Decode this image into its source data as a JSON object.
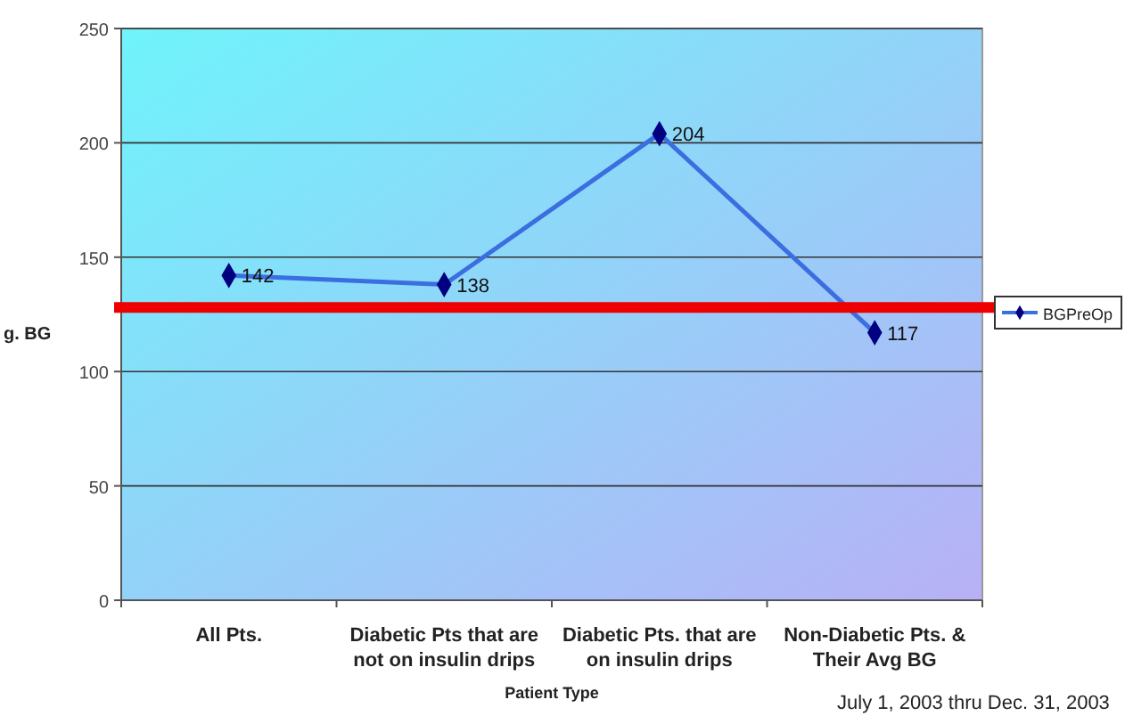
{
  "chart_data": {
    "type": "line",
    "xlabel": "Patient Type",
    "ylabel": "g. BG",
    "categories": [
      "All Pts.",
      "Diabetic Pts that are not on insulin drips",
      "Diabetic Pts. that are on insulin drips",
      "Non-Diabetic Pts. & Their Avg BG"
    ],
    "series": [
      {
        "name": "BGPreOp",
        "color": "#3b6ee0",
        "values": [
          142,
          138,
          204,
          117
        ]
      }
    ],
    "ylim": [
      0,
      250
    ],
    "yticks": [
      0,
      50,
      100,
      150,
      200,
      250
    ],
    "grid": "y",
    "legend": "right",
    "marker": "diamond",
    "data_labels": true,
    "ref_lines": [
      {
        "axis": "y",
        "value": 128,
        "color": "#ee0000"
      }
    ],
    "annotations": [
      "July 1, 2003 thru Dec. 31, 2003"
    ]
  }
}
